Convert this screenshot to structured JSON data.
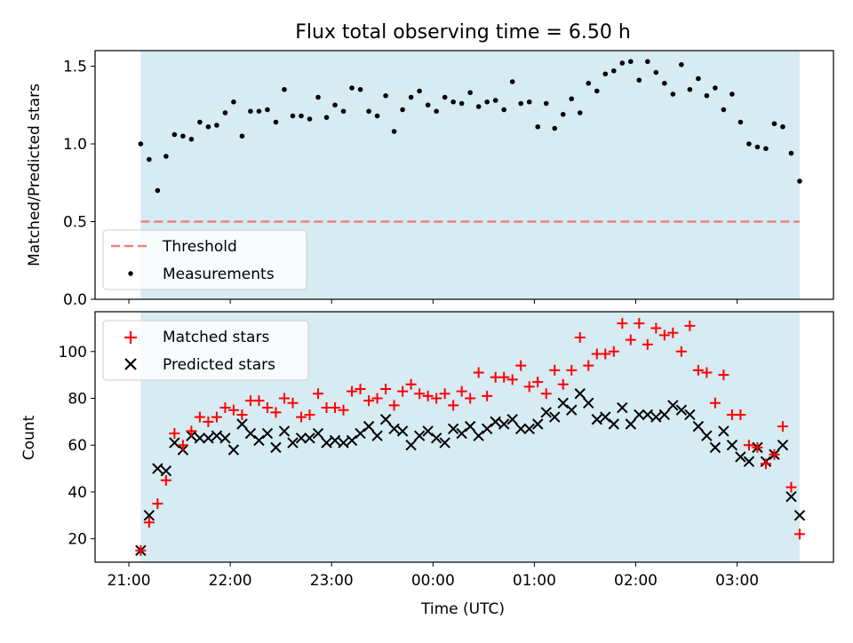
{
  "title": "Flux total observing time = 6.50 h",
  "colors": {
    "shade": "#add8e6",
    "threshold": "#f08080",
    "measurement": "#000000",
    "matched": "#ff0000",
    "predicted": "#000000"
  },
  "chart_data": [
    {
      "type": "scatter",
      "name": "ratio",
      "ylabel": "Matched/Predicted stars",
      "xlabel": "",
      "ylim": [
        0,
        1.6
      ],
      "xlim": [
        "20:40",
        "03:57"
      ],
      "yticks": [
        "0.0",
        "0.5",
        "1.0",
        "1.5"
      ],
      "ytick_values": [
        0,
        0.5,
        1.0,
        1.5
      ],
      "shaded_span": [
        "21:07",
        "03:37"
      ],
      "legend": {
        "position": "lower-left",
        "entries": [
          "Threshold",
          "Measurements"
        ]
      },
      "threshold": {
        "name": "Threshold",
        "value": 0.5
      },
      "series": [
        {
          "name": "Measurements",
          "x": [
            "21:07",
            "21:12",
            "21:17",
            "21:22",
            "21:27",
            "21:32",
            "21:37",
            "21:42",
            "21:47",
            "21:52",
            "21:57",
            "22:02",
            "22:07",
            "22:12",
            "22:17",
            "22:22",
            "22:27",
            "22:32",
            "22:37",
            "22:42",
            "22:47",
            "22:52",
            "22:57",
            "23:02",
            "23:07",
            "23:12",
            "23:17",
            "23:22",
            "23:27",
            "23:32",
            "23:37",
            "23:42",
            "23:47",
            "23:52",
            "23:57",
            "00:02",
            "00:07",
            "00:12",
            "00:17",
            "00:22",
            "00:27",
            "00:32",
            "00:37",
            "00:42",
            "00:47",
            "00:52",
            "00:57",
            "01:02",
            "01:07",
            "01:12",
            "01:17",
            "01:22",
            "01:27",
            "01:32",
            "01:37",
            "01:42",
            "01:47",
            "01:52",
            "01:57",
            "02:02",
            "02:07",
            "02:12",
            "02:17",
            "02:22",
            "02:27",
            "02:32",
            "02:37",
            "02:42",
            "02:47",
            "02:52",
            "02:57",
            "03:02",
            "03:07",
            "03:12",
            "03:17",
            "03:22",
            "03:27",
            "03:32",
            "03:37"
          ],
          "y": [
            1.0,
            0.9,
            0.7,
            0.92,
            1.06,
            1.05,
            1.03,
            1.14,
            1.11,
            1.12,
            1.2,
            1.27,
            1.05,
            1.21,
            1.21,
            1.22,
            1.14,
            1.35,
            1.18,
            1.18,
            1.16,
            1.3,
            1.17,
            1.25,
            1.21,
            1.36,
            1.35,
            1.21,
            1.18,
            1.31,
            1.08,
            1.22,
            1.3,
            1.34,
            1.25,
            1.21,
            1.3,
            1.27,
            1.26,
            1.33,
            1.24,
            1.27,
            1.28,
            1.22,
            1.4,
            1.26,
            1.27,
            1.11,
            1.26,
            1.1,
            1.19,
            1.29,
            1.2,
            1.39,
            1.34,
            1.45,
            1.47,
            1.52,
            1.53,
            1.41,
            1.53,
            1.46,
            1.39,
            1.32,
            1.51,
            1.35,
            1.42,
            1.31,
            1.36,
            1.22,
            1.32,
            1.14,
            1.0,
            0.98,
            0.97,
            1.13,
            1.11,
            0.94,
            0.76
          ]
        }
      ]
    },
    {
      "type": "scatter",
      "name": "counts",
      "ylabel": "Count",
      "xlabel": "Time (UTC)",
      "ylim": [
        10,
        117
      ],
      "xlim": [
        "20:40",
        "03:57"
      ],
      "xticks": [
        "21:00",
        "22:00",
        "23:00",
        "00:00",
        "01:00",
        "02:00",
        "03:00"
      ],
      "yticks": [
        "20",
        "40",
        "60",
        "80",
        "100"
      ],
      "ytick_values": [
        20,
        40,
        60,
        80,
        100
      ],
      "shaded_span": [
        "21:07",
        "03:37"
      ],
      "legend": {
        "position": "upper-left",
        "entries": [
          "Matched stars",
          "Predicted stars"
        ]
      },
      "series": [
        {
          "name": "Matched stars",
          "marker": "+",
          "x": [
            "21:07",
            "21:12",
            "21:17",
            "21:22",
            "21:27",
            "21:32",
            "21:37",
            "21:42",
            "21:47",
            "21:52",
            "21:57",
            "22:02",
            "22:07",
            "22:12",
            "22:17",
            "22:22",
            "22:27",
            "22:32",
            "22:37",
            "22:42",
            "22:47",
            "22:52",
            "22:57",
            "23:02",
            "23:07",
            "23:12",
            "23:17",
            "23:22",
            "23:27",
            "23:32",
            "23:37",
            "23:42",
            "23:47",
            "23:52",
            "23:57",
            "00:02",
            "00:07",
            "00:12",
            "00:17",
            "00:22",
            "00:27",
            "00:32",
            "00:37",
            "00:42",
            "00:47",
            "00:52",
            "00:57",
            "01:02",
            "01:07",
            "01:12",
            "01:17",
            "01:22",
            "01:27",
            "01:32",
            "01:37",
            "01:42",
            "01:47",
            "01:52",
            "01:57",
            "02:02",
            "02:07",
            "02:12",
            "02:17",
            "02:22",
            "02:27",
            "02:32",
            "02:37",
            "02:42",
            "02:47",
            "02:52",
            "02:57",
            "03:02",
            "03:07",
            "03:12",
            "03:17",
            "03:22",
            "03:27",
            "03:32",
            "03:37"
          ],
          "y": [
            15,
            27,
            35,
            45,
            65,
            60,
            66,
            72,
            70,
            72,
            76,
            75,
            73,
            79,
            79,
            76,
            74,
            80,
            78,
            72,
            73,
            82,
            76,
            76,
            75,
            83,
            84,
            79,
            80,
            84,
            77,
            83,
            86,
            82,
            81,
            80,
            82,
            77,
            83,
            80,
            91,
            81,
            89,
            89,
            88,
            94,
            85,
            87,
            82,
            92,
            86,
            92,
            106,
            94,
            99,
            99,
            100,
            112,
            105,
            112,
            103,
            110,
            107,
            108,
            100,
            111,
            92,
            91,
            78,
            90,
            73,
            73,
            60,
            59,
            52,
            56,
            68,
            42,
            22
          ]
        },
        {
          "name": "Predicted stars",
          "marker": "x",
          "x": [
            "21:07",
            "21:12",
            "21:17",
            "21:22",
            "21:27",
            "21:32",
            "21:37",
            "21:42",
            "21:47",
            "21:52",
            "21:57",
            "22:02",
            "22:07",
            "22:12",
            "22:17",
            "22:22",
            "22:27",
            "22:32",
            "22:37",
            "22:42",
            "22:47",
            "22:52",
            "22:57",
            "23:02",
            "23:07",
            "23:12",
            "23:17",
            "23:22",
            "23:27",
            "23:32",
            "23:37",
            "23:42",
            "23:47",
            "23:52",
            "23:57",
            "00:02",
            "00:07",
            "00:12",
            "00:17",
            "00:22",
            "00:27",
            "00:32",
            "00:37",
            "00:42",
            "00:47",
            "00:52",
            "00:57",
            "01:02",
            "01:07",
            "01:12",
            "01:17",
            "01:22",
            "01:27",
            "01:32",
            "01:37",
            "01:42",
            "01:47",
            "01:52",
            "01:57",
            "02:02",
            "02:07",
            "02:12",
            "02:17",
            "02:22",
            "02:27",
            "02:32",
            "02:37",
            "02:42",
            "02:47",
            "02:52",
            "02:57",
            "03:02",
            "03:07",
            "03:12",
            "03:17",
            "03:22",
            "03:27",
            "03:32",
            "03:37"
          ],
          "y": [
            15,
            30,
            50,
            49,
            61,
            58,
            64,
            63,
            63,
            64,
            63,
            58,
            69,
            65,
            62,
            65,
            59,
            66,
            61,
            63,
            63,
            65,
            61,
            62,
            61,
            62,
            65,
            68,
            64,
            71,
            67,
            66,
            60,
            64,
            66,
            63,
            61,
            67,
            65,
            68,
            64,
            67,
            70,
            69,
            71,
            67,
            67,
            69,
            74,
            72,
            78,
            75,
            82,
            78,
            71,
            72,
            69,
            76,
            69,
            73,
            73,
            72,
            73,
            77,
            75,
            73,
            68,
            64,
            59,
            66,
            60,
            55,
            53,
            59,
            53,
            56,
            60,
            38,
            30
          ]
        }
      ]
    }
  ]
}
